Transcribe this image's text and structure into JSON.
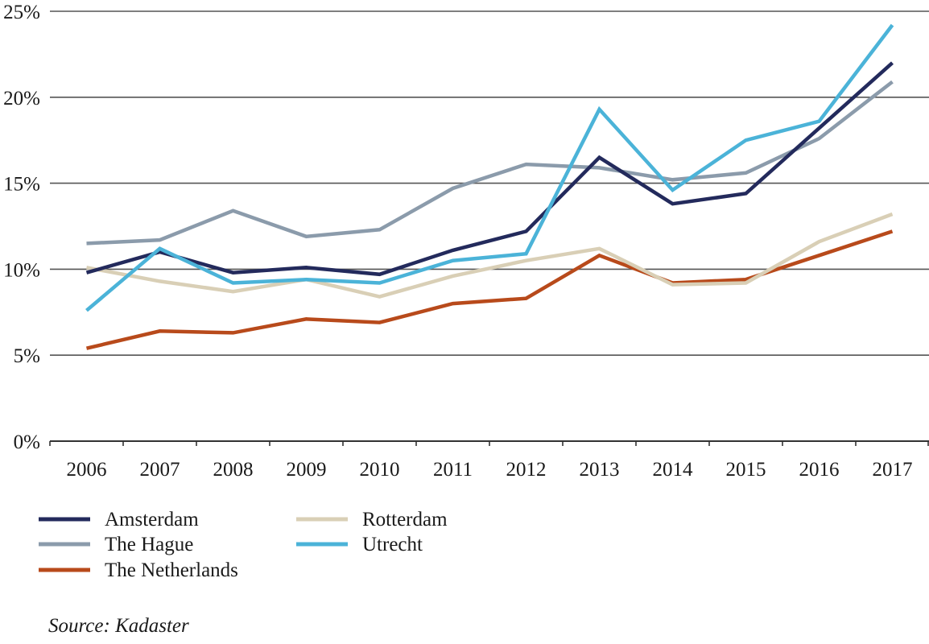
{
  "chart_data": {
    "type": "line",
    "title": "",
    "xlabel": "",
    "ylabel": "",
    "categories": [
      "2006",
      "2007",
      "2008",
      "2009",
      "2010",
      "2011",
      "2012",
      "2013",
      "2014",
      "2015",
      "2016",
      "2017"
    ],
    "ylim": [
      0,
      25
    ],
    "y_ticks": [
      0,
      5,
      10,
      15,
      20,
      25
    ],
    "y_tick_labels": [
      "0%",
      "5%",
      "10%",
      "15%",
      "20%",
      "25%"
    ],
    "grid": true,
    "series": [
      {
        "name": "Amsterdam",
        "color": "#232a5c",
        "values": [
          9.8,
          11.0,
          9.8,
          10.1,
          9.7,
          11.1,
          12.2,
          16.5,
          13.8,
          14.4,
          18.2,
          22.0
        ]
      },
      {
        "name": "The Hague",
        "color": "#8b9bab",
        "values": [
          11.5,
          11.7,
          13.4,
          11.9,
          12.3,
          14.7,
          16.1,
          15.9,
          15.2,
          15.6,
          17.6,
          20.9
        ]
      },
      {
        "name": "The Netherlands",
        "color": "#b84a1b",
        "values": [
          5.4,
          6.4,
          6.3,
          7.1,
          6.9,
          8.0,
          8.3,
          10.8,
          9.2,
          9.4,
          10.8,
          12.2
        ]
      },
      {
        "name": "Rotterdam",
        "color": "#d9cfb6",
        "values": [
          10.1,
          9.3,
          8.7,
          9.4,
          8.4,
          9.6,
          10.5,
          11.2,
          9.1,
          9.2,
          11.6,
          13.2
        ]
      },
      {
        "name": "Utrecht",
        "color": "#4bb3d8",
        "values": [
          7.6,
          11.2,
          9.2,
          9.4,
          9.2,
          10.5,
          10.9,
          19.3,
          14.6,
          17.5,
          18.6,
          24.2
        ]
      }
    ],
    "legend_position": "bottom-left",
    "source": "Source: Kadaster"
  }
}
